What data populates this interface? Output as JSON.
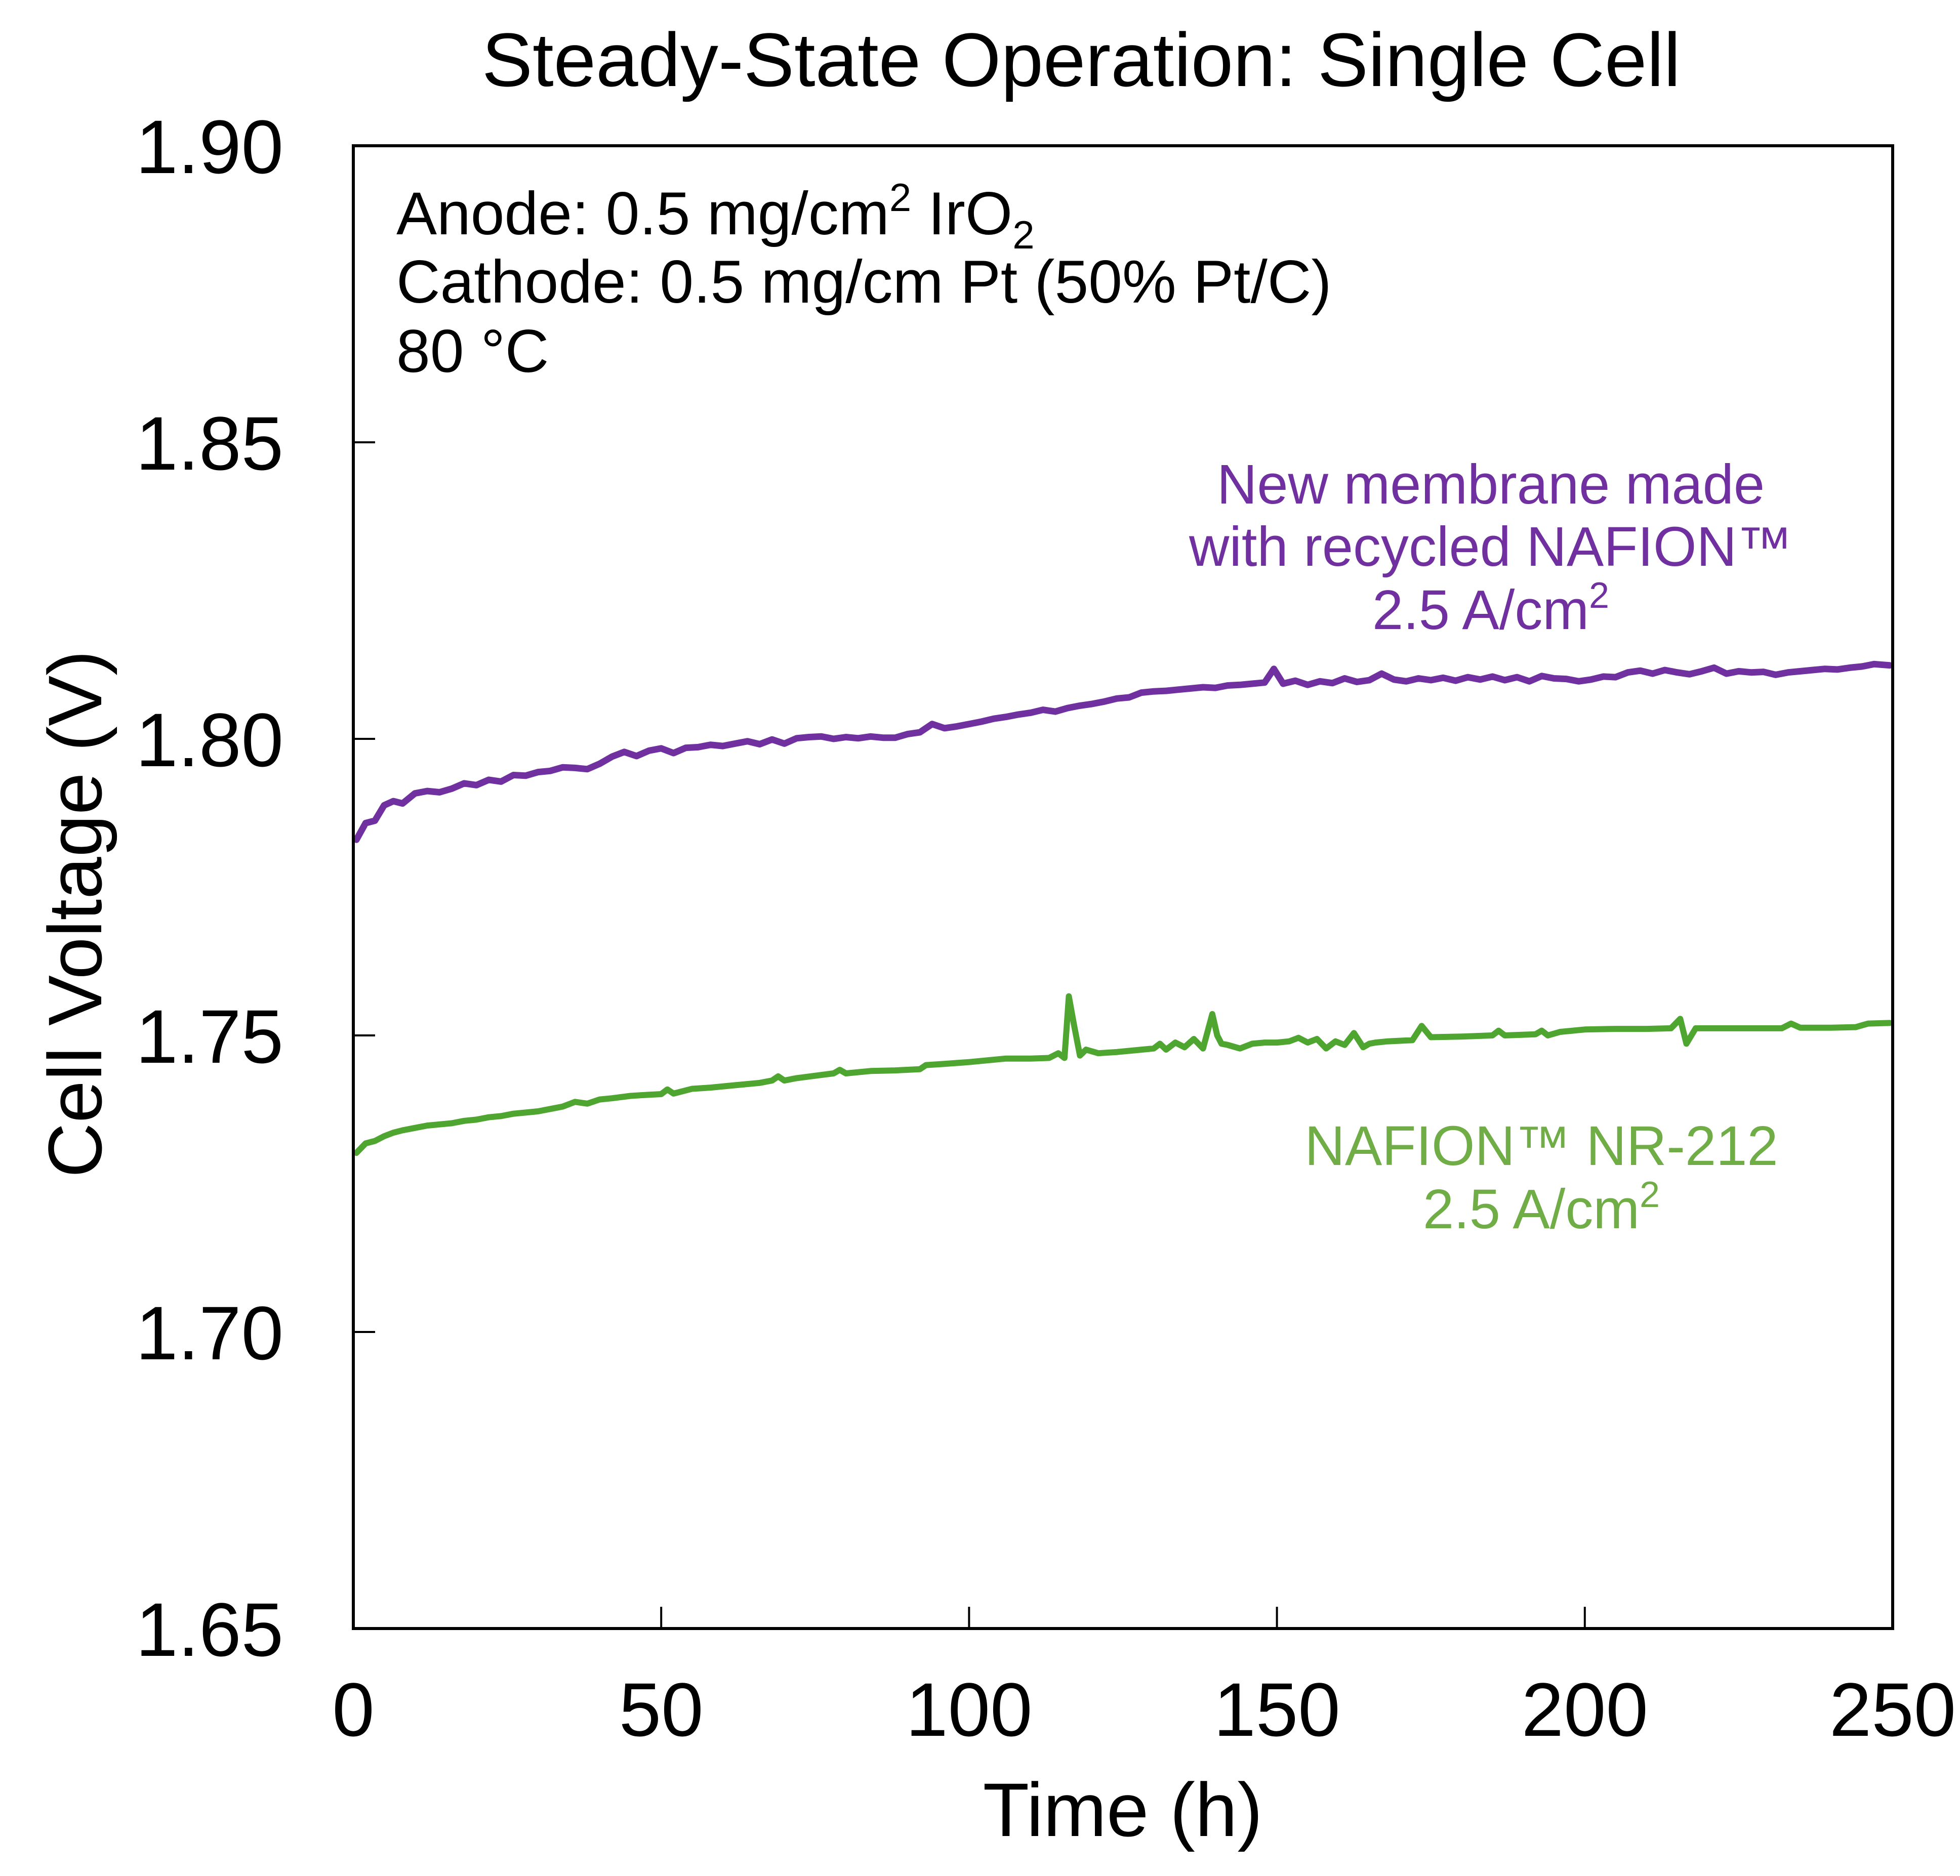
{
  "chart_data": {
    "type": "line",
    "title": "Steady-State Operation: Single Cell",
    "xlabel": "Time (h)",
    "ylabel": "Cell Voltage (V)",
    "xlim": [
      0,
      250
    ],
    "ylim": [
      1.65,
      1.9
    ],
    "xticks": [
      0,
      50,
      100,
      150,
      200,
      250
    ],
    "xtick_labels": [
      "0",
      "50",
      "100",
      "150",
      "200",
      "250"
    ],
    "yticks": [
      1.65,
      1.7,
      1.75,
      1.8,
      1.85,
      1.9
    ],
    "ytick_labels": [
      "1.65",
      "1.70",
      "1.75",
      "1.80",
      "1.85",
      "1.90"
    ],
    "grid": false,
    "legend": "inline-annotations",
    "conditions": {
      "line1_prefix": "Anode: 0.5 mg/cm",
      "line1_sup": "2",
      "line1_mid": " IrO",
      "line1_sub": "2",
      "line2": "Cathode: 0.5 mg/cm Pt (50% Pt/C)",
      "line3": "80 °C"
    },
    "series": [
      {
        "name": "New membrane made with recycled NAFION™",
        "label_lines": [
          "New membrane made",
          "with recycled NAFION™"
        ],
        "label_current": "2.5 A/cm",
        "label_current_sup": "2",
        "color": "#7030a0",
        "x": [
          0.5,
          2,
          3.5,
          5,
          6.5,
          8,
          10,
          12,
          14,
          16,
          18,
          20,
          22,
          24,
          26,
          28,
          30,
          32,
          34,
          36,
          38,
          40,
          42,
          44,
          46,
          48,
          50,
          52,
          54,
          56,
          58,
          60,
          62,
          64,
          66,
          68,
          70,
          72,
          74,
          76,
          78,
          80,
          82,
          84,
          86,
          88,
          90,
          92,
          94,
          96,
          98,
          100,
          102,
          104,
          106,
          108,
          110,
          112,
          114,
          116,
          118,
          120,
          122,
          124,
          126,
          128,
          130,
          132,
          134,
          136,
          138,
          140,
          142,
          144,
          146,
          148,
          149.5,
          151,
          153,
          155,
          157,
          159,
          161,
          163,
          165,
          167,
          169,
          171,
          173,
          175,
          177,
          179,
          181,
          183,
          185,
          187,
          189,
          191,
          193,
          195,
          197,
          199,
          201,
          203,
          205,
          207,
          209,
          211,
          213,
          215,
          217,
          219,
          221,
          223,
          225,
          227,
          229,
          231,
          233,
          235,
          237,
          239,
          241,
          243,
          245,
          247,
          249.5
        ],
        "y": [
          1.783,
          1.7858,
          1.7862,
          1.7888,
          1.7895,
          1.7891,
          1.7908,
          1.7912,
          1.791,
          1.7916,
          1.7925,
          1.7922,
          1.7931,
          1.7928,
          1.7939,
          1.7938,
          1.7944,
          1.7946,
          1.7952,
          1.7951,
          1.7949,
          1.7958,
          1.797,
          1.7978,
          1.7971,
          1.798,
          1.7984,
          1.7976,
          1.7985,
          1.7986,
          1.799,
          1.7988,
          1.7992,
          1.7996,
          1.7991,
          1.7999,
          1.7992,
          1.8001,
          1.8003,
          1.8004,
          1.8,
          1.8003,
          1.8001,
          1.8004,
          1.8002,
          1.8002,
          1.8008,
          1.8011,
          1.8025,
          1.8018,
          1.8021,
          1.8025,
          1.8029,
          1.8034,
          1.8037,
          1.8041,
          1.8044,
          1.8049,
          1.8046,
          1.8052,
          1.8056,
          1.8059,
          1.8063,
          1.8068,
          1.807,
          1.8078,
          1.808,
          1.8081,
          1.8083,
          1.8085,
          1.8087,
          1.8086,
          1.809,
          1.8091,
          1.8093,
          1.8095,
          1.8118,
          1.8093,
          1.8098,
          1.8091,
          1.8097,
          1.8094,
          1.8102,
          1.8096,
          1.8099,
          1.811,
          1.81,
          1.8097,
          1.8102,
          1.8099,
          1.8103,
          1.8098,
          1.8104,
          1.81,
          1.8105,
          1.8099,
          1.8104,
          1.8097,
          1.8106,
          1.8102,
          1.8101,
          1.8097,
          1.81,
          1.8105,
          1.8104,
          1.8112,
          1.8115,
          1.811,
          1.8116,
          1.8112,
          1.8109,
          1.8114,
          1.812,
          1.811,
          1.8114,
          1.8112,
          1.8113,
          1.8108,
          1.8112,
          1.8114,
          1.8116,
          1.8118,
          1.8117,
          1.812,
          1.8122,
          1.8126,
          1.8124
        ]
      },
      {
        "name": "NAFION™ NR-212",
        "label_lines": [
          "NAFION™ NR-212"
        ],
        "label_current": "2.5 A/cm",
        "label_current_sup": "2",
        "color": "#4ea52f",
        "x": [
          0.5,
          2,
          3.5,
          5,
          6.5,
          8,
          10,
          12,
          14,
          16,
          18,
          20,
          22,
          24,
          26,
          28,
          30,
          32,
          34,
          36,
          38,
          40,
          42,
          45,
          48,
          50,
          51,
          52,
          55,
          58,
          62,
          66,
          68,
          69,
          70,
          72,
          75,
          78,
          79,
          80,
          84,
          88,
          92,
          93,
          96,
          100,
          103,
          106,
          110,
          113,
          114.5,
          115.5,
          116.2,
          117,
          118,
          119,
          121,
          124,
          128,
          130,
          131,
          132,
          133.5,
          135,
          136.5,
          138,
          139.5,
          140.3,
          141,
          142,
          144,
          146,
          148,
          150,
          152,
          153.5,
          155,
          156.5,
          158,
          159.5,
          161,
          162.5,
          164,
          165,
          166,
          168,
          172,
          173.5,
          175,
          180,
          185,
          186,
          187,
          192,
          193,
          194,
          196,
          200,
          205,
          210,
          214,
          215.5,
          216.5,
          218,
          222,
          228,
          232,
          233.5,
          235,
          240,
          244,
          246,
          249.5
        ],
        "y": [
          1.7302,
          1.7318,
          1.7322,
          1.733,
          1.7336,
          1.734,
          1.7344,
          1.7348,
          1.735,
          1.7352,
          1.7356,
          1.7358,
          1.7362,
          1.7364,
          1.7368,
          1.737,
          1.7372,
          1.7376,
          1.738,
          1.7388,
          1.7385,
          1.7392,
          1.7394,
          1.7398,
          1.74,
          1.7401,
          1.7409,
          1.7402,
          1.741,
          1.7412,
          1.7416,
          1.742,
          1.7424,
          1.7431,
          1.7424,
          1.7428,
          1.7432,
          1.7436,
          1.7442,
          1.7436,
          1.744,
          1.7441,
          1.7443,
          1.745,
          1.7452,
          1.7455,
          1.7458,
          1.7461,
          1.7461,
          1.7462,
          1.747,
          1.7462,
          1.7566,
          1.752,
          1.7466,
          1.7476,
          1.747,
          1.7472,
          1.7476,
          1.7478,
          1.7486,
          1.7476,
          1.7488,
          1.748,
          1.7494,
          1.7478,
          1.7536,
          1.75,
          1.7486,
          1.7484,
          1.7478,
          1.7486,
          1.7488,
          1.7488,
          1.749,
          1.7496,
          1.7488,
          1.7494,
          1.7478,
          1.749,
          1.7484,
          1.7504,
          1.748,
          1.7486,
          1.7488,
          1.749,
          1.7492,
          1.7516,
          1.7497,
          1.7498,
          1.75,
          1.7508,
          1.75,
          1.7502,
          1.7508,
          1.75,
          1.7506,
          1.751,
          1.7511,
          1.7511,
          1.7512,
          1.7528,
          1.7486,
          1.7512,
          1.7512,
          1.7512,
          1.7512,
          1.752,
          1.7513,
          1.7513,
          1.7514,
          1.752,
          1.7521
        ]
      }
    ]
  }
}
